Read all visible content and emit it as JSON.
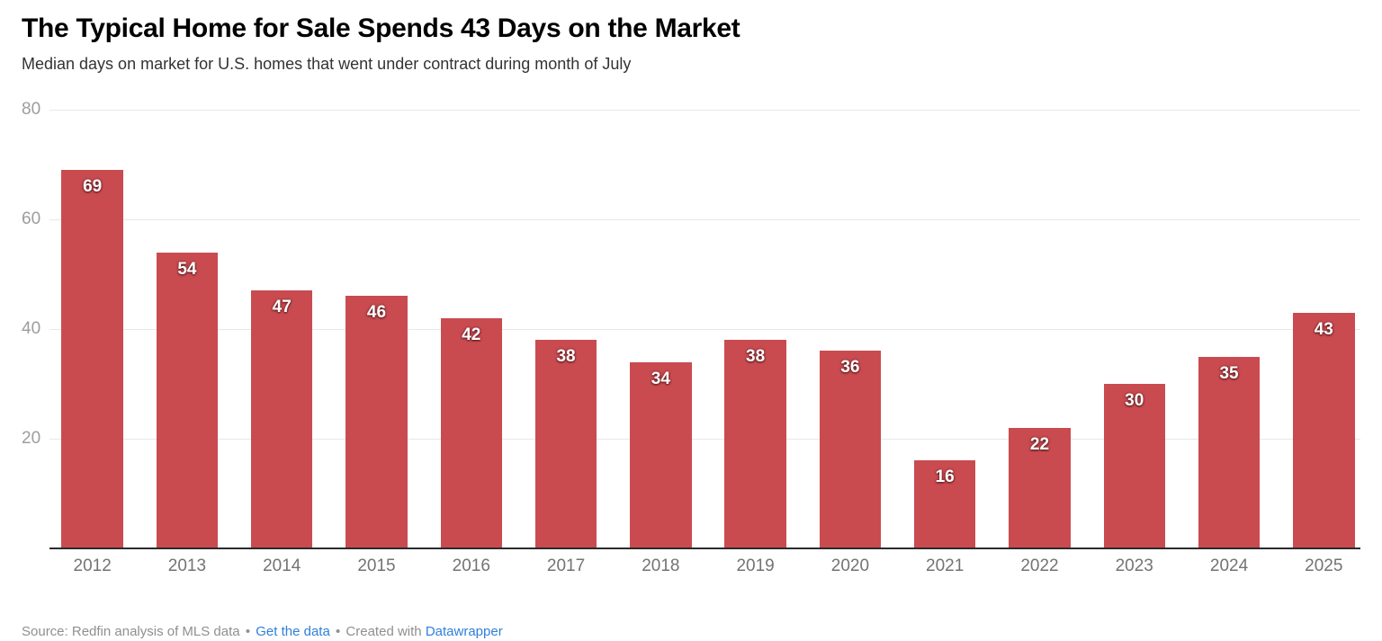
{
  "chart_data": {
    "type": "bar",
    "title": "The Typical Home for Sale Spends 43 Days on the Market",
    "subtitle": "Median days on market for U.S. homes that went under contract during month of July",
    "categories": [
      "2012",
      "2013",
      "2014",
      "2015",
      "2016",
      "2017",
      "2018",
      "2019",
      "2020",
      "2021",
      "2022",
      "2023",
      "2024",
      "2025"
    ],
    "values": [
      69,
      54,
      47,
      46,
      42,
      38,
      34,
      38,
      36,
      16,
      22,
      30,
      35,
      43
    ],
    "xlabel": "",
    "ylabel": "",
    "ylim": [
      0,
      80
    ],
    "yticks": [
      20,
      40,
      60,
      80
    ],
    "grid": true,
    "legend": "none",
    "value_labels": "inside-top"
  },
  "footer": {
    "source_text": "Source: Redfin analysis of MLS data",
    "separator": "•",
    "get_data_link": "Get the data",
    "created_with_text": "Created with",
    "datawrapper_link": "Datawrapper"
  },
  "colors": {
    "bar": "#c94b50",
    "value_label": "#ffffff",
    "gridline": "#e8e8e8",
    "baseline": "#2b2b2b",
    "y_tick": "#9d9d9d",
    "x_label": "#737373",
    "title": "#000000",
    "subtitle": "#333333",
    "footer_text": "#8f8f8f",
    "link": "#2f80d8"
  }
}
